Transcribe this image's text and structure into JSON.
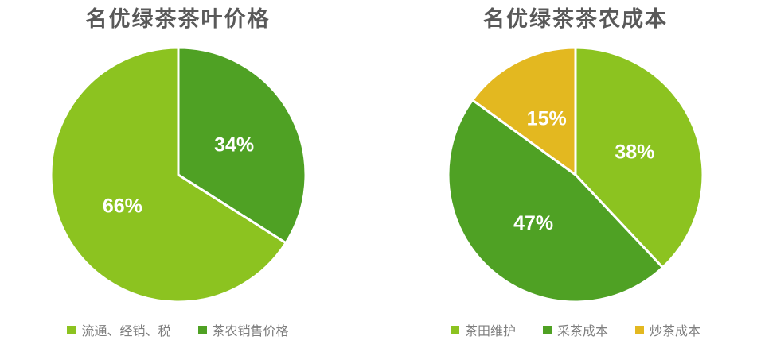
{
  "page": {
    "background": "#ffffff",
    "title_color": "#595959",
    "legend_text_color": "#7f7f7f",
    "label_text_color": "#ffffff"
  },
  "chart_data": [
    {
      "type": "pie",
      "title": "名优绿茶茶叶价格",
      "start_angle_deg": 0,
      "direction": "clockwise",
      "slices": [
        {
          "name": "茶农销售价格",
          "value": 34,
          "pct_label": "34%",
          "color": "#4FA124"
        },
        {
          "name": "流通、经销、税",
          "value": 66,
          "pct_label": "66%",
          "color": "#8CC320"
        }
      ],
      "legend_position": "bottom",
      "legend": [
        {
          "label": "流通、经销、税",
          "color": "#8CC320"
        },
        {
          "label": "茶农销售价格",
          "color": "#4FA124"
        }
      ]
    },
    {
      "type": "pie",
      "title": "名优绿茶茶农成本",
      "start_angle_deg": 0,
      "direction": "clockwise",
      "slices": [
        {
          "name": "茶田维护",
          "value": 38,
          "pct_label": "38%",
          "color": "#8CC320"
        },
        {
          "name": "采茶成本",
          "value": 47,
          "pct_label": "47%",
          "color": "#4FA124"
        },
        {
          "name": "炒茶成本",
          "value": 15,
          "pct_label": "15%",
          "color": "#E3B820"
        }
      ],
      "legend_position": "bottom",
      "legend": [
        {
          "label": "茶田维护",
          "color": "#8CC320"
        },
        {
          "label": "采茶成本",
          "color": "#4FA124"
        },
        {
          "label": "炒茶成本",
          "color": "#E3B820"
        }
      ]
    }
  ]
}
